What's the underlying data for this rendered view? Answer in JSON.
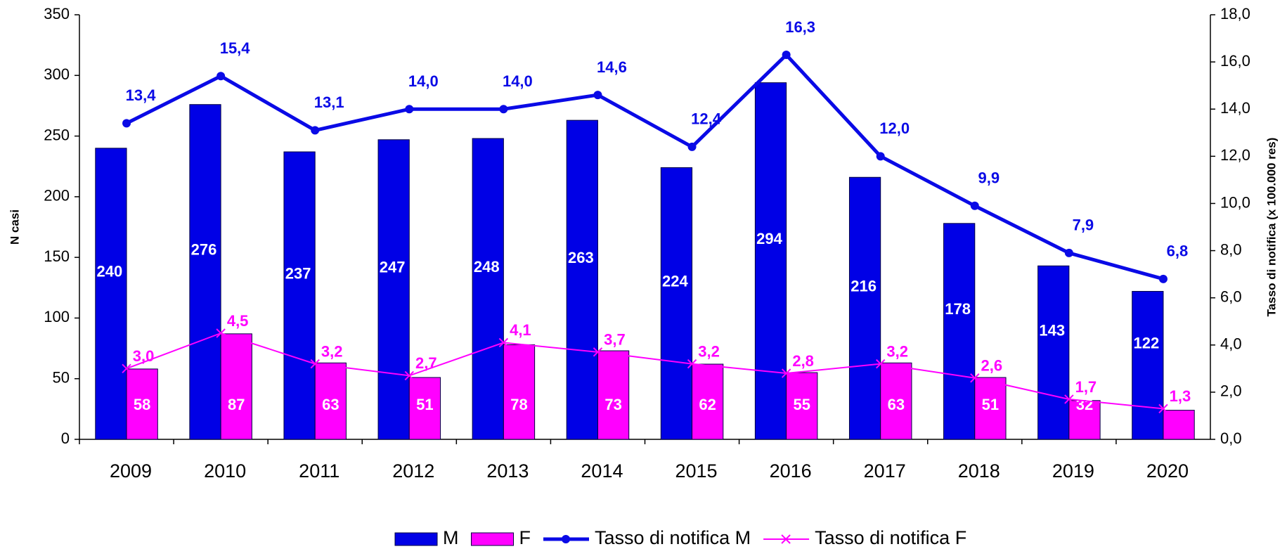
{
  "chart_data": {
    "type": "bar_line",
    "y_label": "N casi",
    "y2_label": "Tasso di notifica (x 100.000 res)",
    "categories": [
      "2009",
      "2010",
      "2011",
      "2012",
      "2013",
      "2014",
      "2015",
      "2016",
      "2017",
      "2018",
      "2019",
      "2020"
    ],
    "ylim": [
      0,
      350
    ],
    "yticks": [
      0,
      50,
      100,
      150,
      200,
      250,
      300,
      350
    ],
    "y2lim": [
      0,
      18
    ],
    "y2ticks": [
      {
        "value": 0,
        "label": "0,0"
      },
      {
        "value": 2,
        "label": "2,0"
      },
      {
        "value": 4,
        "label": "4,0"
      },
      {
        "value": 6,
        "label": "6,0"
      },
      {
        "value": 8,
        "label": "8,0"
      },
      {
        "value": 10,
        "label": "10,0"
      },
      {
        "value": 12,
        "label": "12,0"
      },
      {
        "value": 14,
        "label": "14,0"
      },
      {
        "value": 16,
        "label": "16,0"
      },
      {
        "value": 18,
        "label": "18,0"
      }
    ],
    "grid": false,
    "legend": "bottom",
    "series": [
      {
        "name": "M",
        "kind": "bar",
        "color": "#0000e6",
        "values": [
          240,
          276,
          237,
          247,
          248,
          263,
          224,
          294,
          216,
          178,
          143,
          122
        ]
      },
      {
        "name": "F",
        "kind": "bar",
        "color": "#ff00ff",
        "values": [
          58,
          87,
          63,
          51,
          78,
          73,
          62,
          55,
          63,
          51,
          32,
          24
        ]
      },
      {
        "name": "Tasso di notifica M",
        "kind": "line",
        "axis": "y2",
        "color": "#0a0ae6",
        "marker": "circle",
        "values": [
          13.4,
          15.4,
          13.1,
          14.0,
          14.0,
          14.6,
          12.4,
          16.3,
          12.0,
          9.9,
          7.9,
          6.8
        ],
        "value_labels": [
          "13,4",
          "15,4",
          "13,1",
          "14,0",
          "14,0",
          "14,6",
          "12,4",
          "16,3",
          "12,0",
          "9,9",
          "7,9",
          "6,8"
        ]
      },
      {
        "name": "Tasso di notifica F",
        "kind": "line",
        "axis": "y2",
        "color": "#ff00ff",
        "marker": "x",
        "values": [
          3.0,
          4.5,
          3.2,
          2.7,
          4.1,
          3.7,
          3.2,
          2.8,
          3.2,
          2.6,
          1.7,
          1.3
        ],
        "value_labels": [
          "3,0",
          "4,5",
          "3,2",
          "2,7",
          "4,1",
          "3,7",
          "3,2",
          "2,8",
          "3,2",
          "2,6",
          "1,7",
          "1,3"
        ]
      }
    ]
  }
}
